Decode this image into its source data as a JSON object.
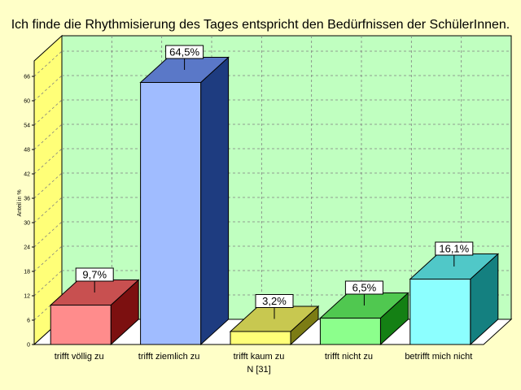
{
  "chart_data": {
    "type": "bar",
    "title": "Ich finde die Rhythmisierung des Tages entspricht den Bedürfnissen der SchülerInnen.",
    "ylabel": "Anteil in %",
    "xnote": "N [31]",
    "ylim": [
      0,
      72
    ],
    "yticks": [
      "0",
      "6",
      "12",
      "18",
      "24",
      "30",
      "36",
      "42",
      "48",
      "54",
      "60",
      "66"
    ],
    "grid": true,
    "categories": [
      "trifft völlig zu",
      "trifft ziemlich zu",
      "trifft kaum zu",
      "trifft nicht zu",
      "betrifft mich nicht"
    ],
    "values": [
      9.7,
      64.5,
      3.2,
      6.5,
      16.1
    ],
    "value_labels": [
      "9,7%",
      "64,5%",
      "3,2%",
      "6,5%",
      "16,1%"
    ],
    "colors": {
      "front": [
        "#ff8c8c",
        "#a0bcff",
        "#ffff78",
        "#8cff8c",
        "#8cffff"
      ],
      "top": [
        "#c85050",
        "#5a78c8",
        "#c8c850",
        "#50c850",
        "#50c8c8"
      ],
      "side": [
        "#7c1010",
        "#1e3c80",
        "#7c7c14",
        "#148014",
        "#148080"
      ]
    }
  }
}
